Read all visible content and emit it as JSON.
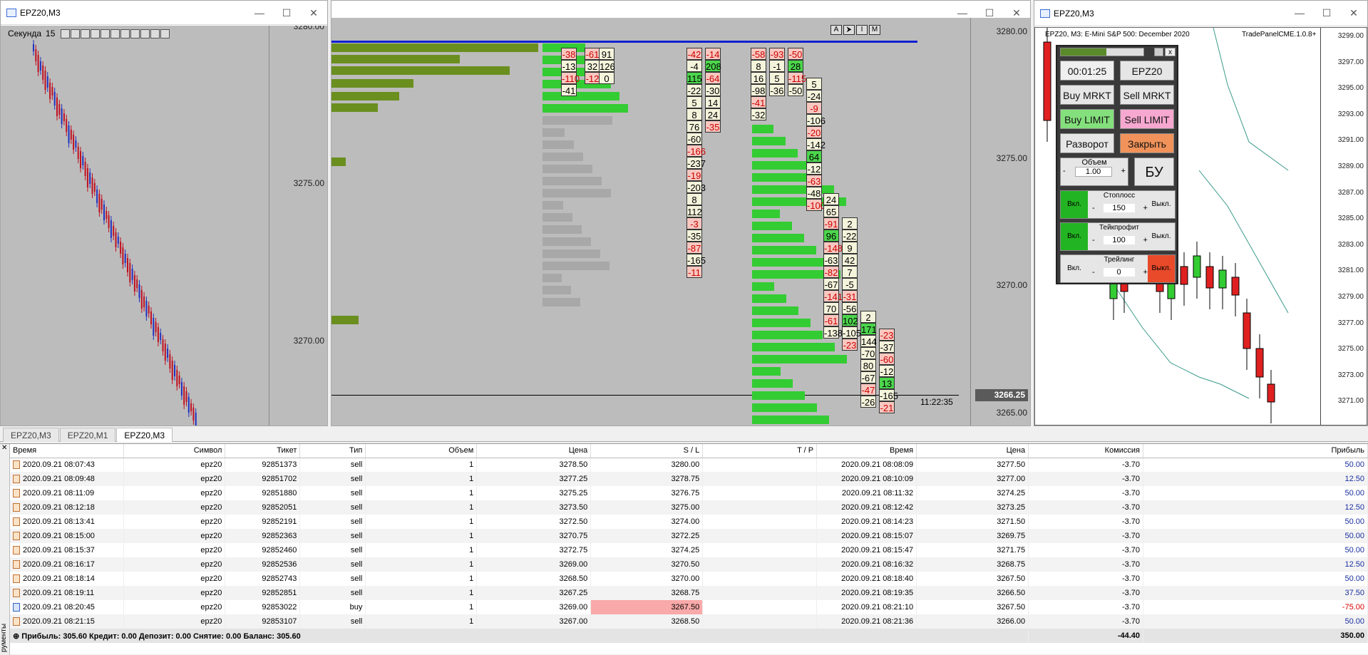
{
  "windows": [
    {
      "title": "EPZ20,M3",
      "prices": [
        "3280.00",
        "3275.00",
        "3270.00"
      ]
    },
    {
      "title": "",
      "prices": [
        "3280.00",
        "3275.00",
        "3270.00",
        "3265.00"
      ],
      "last_price": "3266.25",
      "time": "11:22:35",
      "buttons": [
        "A",
        "⮞",
        "I",
        "M"
      ]
    },
    {
      "title": "EPZ20,M3",
      "chart_caption": "EPZ20, M3:  E-Mini S&P 500: December 2020",
      "plugin": "TradePanelCME.1.0.8+",
      "prices": [
        "3299.00",
        "3297.00",
        "3295.00",
        "3293.00",
        "3291.00",
        "3289.00",
        "3287.00",
        "3285.00",
        "3283.00",
        "3281.00",
        "3279.00",
        "3277.00",
        "3275.00",
        "3273.00",
        "3271.00"
      ]
    }
  ],
  "toolbar": {
    "period_label": "Секунда",
    "period_value": "15"
  },
  "panel": {
    "timer": "00:01:25",
    "symbol": "EPZ20",
    "buy_market": "Buy MRKT",
    "sell_market": "Sell MRKT",
    "buy_limit": "Buy LIMIT",
    "sell_limit": "Sell LIMIT",
    "reverse": "Разворот",
    "close": "Закрыть",
    "volume_label": "Объем",
    "volume_value": "1.00",
    "bu": "БУ",
    "stoploss_label": "Стоплосс",
    "stoploss_value": "150",
    "takeprofit_label": "Тейкпрофит",
    "takeprofit_value": "100",
    "trailing_label": "Трейлинг",
    "trailing_value": "0",
    "on": "Вкл.",
    "off": "Выкл.",
    "minus": "-",
    "plus": "+"
  },
  "tabs": [
    "EPZ20,M3",
    "EPZ20,M1",
    "EPZ20,M3"
  ],
  "table": {
    "headers": [
      "Время",
      "Символ",
      "Тикет",
      "Тип",
      "Объем",
      "Цена",
      "S / L",
      "T / P",
      "Время",
      "Цена",
      "Комиссия",
      "Прибыль"
    ],
    "rows": [
      [
        "2020.09.21 08:07:43",
        "epz20",
        "92851373",
        "sell",
        "1",
        "3278.50",
        "3280.00",
        "",
        "2020.09.21 08:08:09",
        "3277.50",
        "-3.70",
        "50.00"
      ],
      [
        "2020.09.21 08:09:48",
        "epz20",
        "92851702",
        "sell",
        "1",
        "3277.25",
        "3278.75",
        "",
        "2020.09.21 08:10:09",
        "3277.00",
        "-3.70",
        "12.50"
      ],
      [
        "2020.09.21 08:11:09",
        "epz20",
        "92851880",
        "sell",
        "1",
        "3275.25",
        "3276.75",
        "",
        "2020.09.21 08:11:32",
        "3274.25",
        "-3.70",
        "50.00"
      ],
      [
        "2020.09.21 08:12:18",
        "epz20",
        "92852051",
        "sell",
        "1",
        "3273.50",
        "3275.00",
        "",
        "2020.09.21 08:12:42",
        "3273.25",
        "-3.70",
        "12.50"
      ],
      [
        "2020.09.21 08:13:41",
        "epz20",
        "92852191",
        "sell",
        "1",
        "3272.50",
        "3274.00",
        "",
        "2020.09.21 08:14:23",
        "3271.50",
        "-3.70",
        "50.00"
      ],
      [
        "2020.09.21 08:15:00",
        "epz20",
        "92852363",
        "sell",
        "1",
        "3270.75",
        "3272.25",
        "",
        "2020.09.21 08:15:07",
        "3269.75",
        "-3.70",
        "50.00"
      ],
      [
        "2020.09.21 08:15:37",
        "epz20",
        "92852460",
        "sell",
        "1",
        "3272.75",
        "3274.25",
        "",
        "2020.09.21 08:15:47",
        "3271.75",
        "-3.70",
        "50.00"
      ],
      [
        "2020.09.21 08:16:17",
        "epz20",
        "92852536",
        "sell",
        "1",
        "3269.00",
        "3270.50",
        "",
        "2020.09.21 08:16:32",
        "3268.75",
        "-3.70",
        "12.50"
      ],
      [
        "2020.09.21 08:18:14",
        "epz20",
        "92852743",
        "sell",
        "1",
        "3268.50",
        "3270.00",
        "",
        "2020.09.21 08:18:40",
        "3267.50",
        "-3.70",
        "50.00"
      ],
      [
        "2020.09.21 08:19:11",
        "epz20",
        "92852851",
        "sell",
        "1",
        "3267.25",
        "3268.75",
        "",
        "2020.09.21 08:19:35",
        "3266.50",
        "-3.70",
        "37.50"
      ],
      [
        "2020.09.21 08:20:45",
        "epz20",
        "92853022",
        "buy",
        "1",
        "3269.00",
        "3267.50",
        "",
        "2020.09.21 08:21:10",
        "3267.50",
        "-3.70",
        "-75.00"
      ],
      [
        "2020.09.21 08:21:15",
        "epz20",
        "92853107",
        "sell",
        "1",
        "3267.00",
        "3268.50",
        "",
        "2020.09.21 08:21:36",
        "3266.00",
        "-3.70",
        "50.00"
      ]
    ],
    "summary": "Прибыль: 305.60  Кредит: 0.00  Депозит: 0.00  Снятие: 0.00  Баланс: 305.60",
    "total_commission": "-44.40",
    "total_profit": "350.00"
  },
  "sidebar_label": "рументы",
  "colors": {
    "buy_green": "#33cc33",
    "sell_red": "#e02020",
    "volume_green": "#6a8f1f",
    "limit_pink": "#f2a0c8",
    "close_orange": "#f0925a"
  }
}
